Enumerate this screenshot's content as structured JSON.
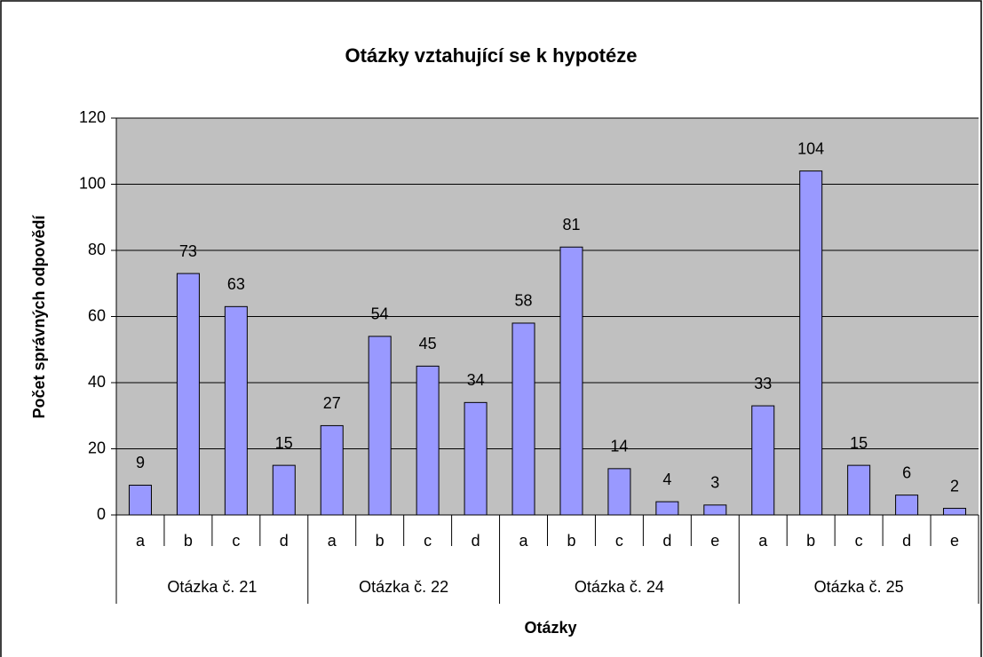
{
  "chart_data": {
    "type": "bar",
    "title": "Otázky vztahující se k hypotéze",
    "x_label": "Otázky",
    "y_label": "Počet správných odpovědí",
    "groups": [
      {
        "name": "Otázka č. 21",
        "categories": [
          "a",
          "b",
          "c",
          "d"
        ],
        "values": [
          9,
          73,
          63,
          15
        ]
      },
      {
        "name": "Otázka č. 22",
        "categories": [
          "a",
          "b",
          "c",
          "d"
        ],
        "values": [
          27,
          54,
          45,
          34
        ]
      },
      {
        "name": "Otázka č. 24",
        "categories": [
          "a",
          "b",
          "c",
          "d",
          "e"
        ],
        "values": [
          58,
          81,
          14,
          4,
          3
        ]
      },
      {
        "name": "Otázka č. 25",
        "categories": [
          "a",
          "b",
          "c",
          "d",
          "e"
        ],
        "values": [
          33,
          104,
          15,
          6,
          2
        ]
      }
    ],
    "color": "#9999ff",
    "ylim": [
      0,
      120
    ],
    "yticks": [
      0,
      20,
      40,
      60,
      80,
      100,
      120
    ],
    "grid": true
  }
}
